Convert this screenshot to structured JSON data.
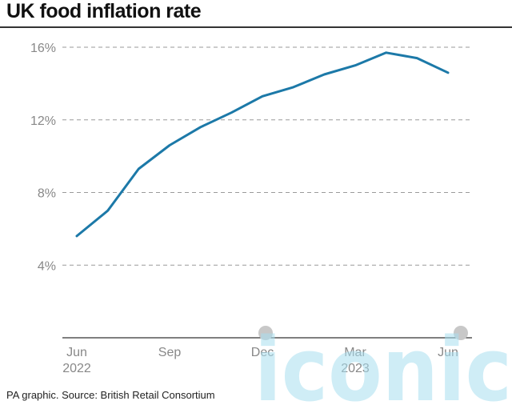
{
  "title": "UK food inflation rate",
  "source": "PA graphic. Source: British Retail Consortium",
  "watermark": "iconic",
  "colors": {
    "line": "#1c79a8",
    "grid": "#9a9a9a",
    "axis": "#333333",
    "tick_text": "#888888",
    "watermark": "#a8dff0"
  },
  "chart_data": {
    "type": "line",
    "title": "UK food inflation rate",
    "xlabel": "",
    "ylabel": "",
    "ylim": [
      0,
      16
    ],
    "yticks": [
      4,
      8,
      12,
      16
    ],
    "ytick_labels": [
      "4%",
      "8%",
      "12%",
      "16%"
    ],
    "x_tick_labels": [
      {
        "month": "Jun",
        "year": "2022"
      },
      {
        "month": "Sep",
        "year": ""
      },
      {
        "month": "Dec",
        "year": ""
      },
      {
        "month": "Mar",
        "year": "2023"
      },
      {
        "month": "Jun",
        "year": ""
      }
    ],
    "grid": true,
    "series": [
      {
        "values": [
          {
            "x": "2022-06",
            "y": 5.6
          },
          {
            "x": "2022-07",
            "y": 7.0
          },
          {
            "x": "2022-08",
            "y": 9.3
          },
          {
            "x": "2022-09",
            "y": 10.6
          },
          {
            "x": "2022-10",
            "y": 11.6
          },
          {
            "x": "2022-11",
            "y": 12.4
          },
          {
            "x": "2022-12",
            "y": 13.3
          },
          {
            "x": "2023-01",
            "y": 13.8
          },
          {
            "x": "2023-02",
            "y": 14.5
          },
          {
            "x": "2023-03",
            "y": 15.0
          },
          {
            "x": "2023-04",
            "y": 15.7
          },
          {
            "x": "2023-05",
            "y": 15.4
          },
          {
            "x": "2023-06",
            "y": 14.6
          }
        ]
      }
    ]
  }
}
